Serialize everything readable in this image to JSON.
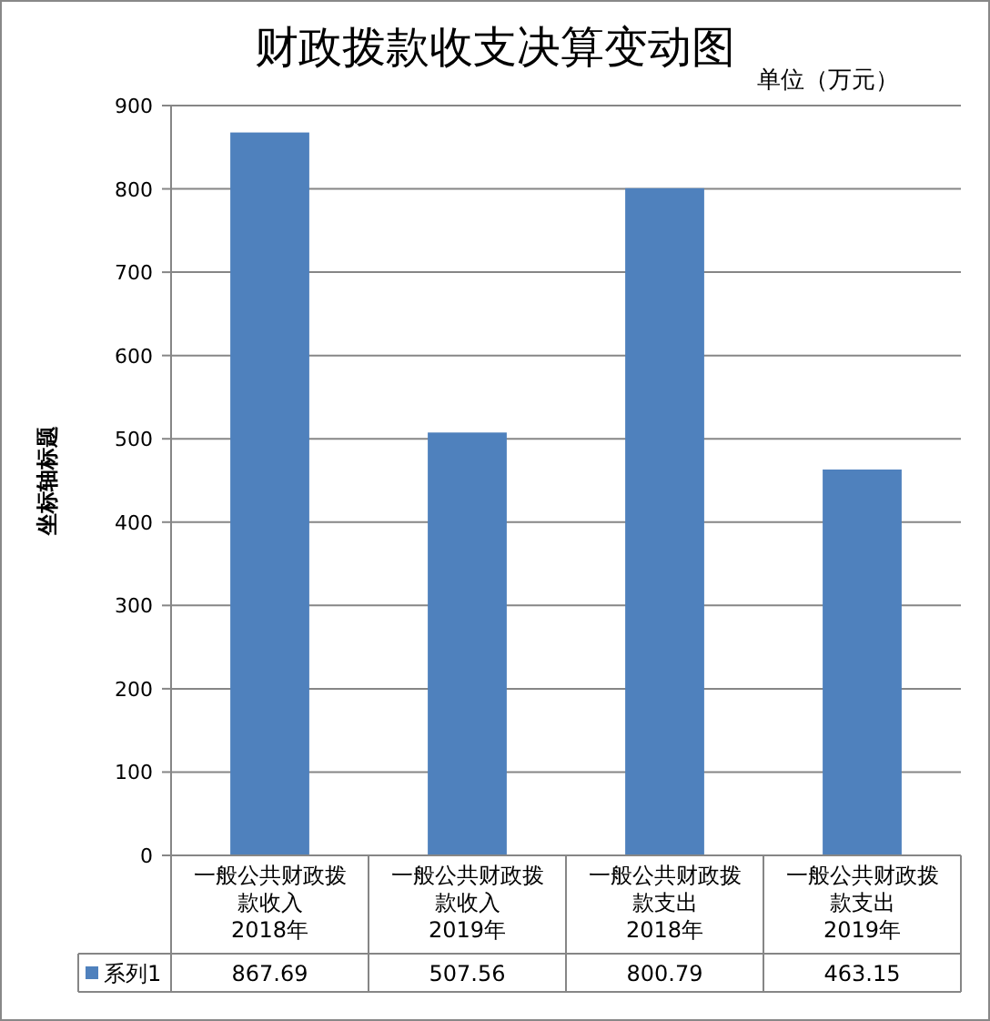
{
  "chart_data": {
    "type": "bar",
    "title": "财政拨款收支决算变动图",
    "ylabel": "坐标轴标题",
    "annotations": [
      "单位（万元）"
    ],
    "categories": [
      "一般公共财政拨款收入2018年",
      "一般公共财政拨款收入2019年",
      "一般公共财政拨款支出2018年",
      "一般公共财政拨款支出2019年"
    ],
    "series": [
      {
        "name": "系列1",
        "color": "#4f81bd",
        "values": [
          867.69,
          507.56,
          800.79,
          463.15
        ]
      }
    ],
    "ylim": [
      0,
      900
    ],
    "yticks": [
      0,
      100,
      200,
      300,
      400,
      500,
      600,
      700,
      800,
      900
    ],
    "grid": "y",
    "data_labels": true,
    "legend": "bottom left"
  }
}
